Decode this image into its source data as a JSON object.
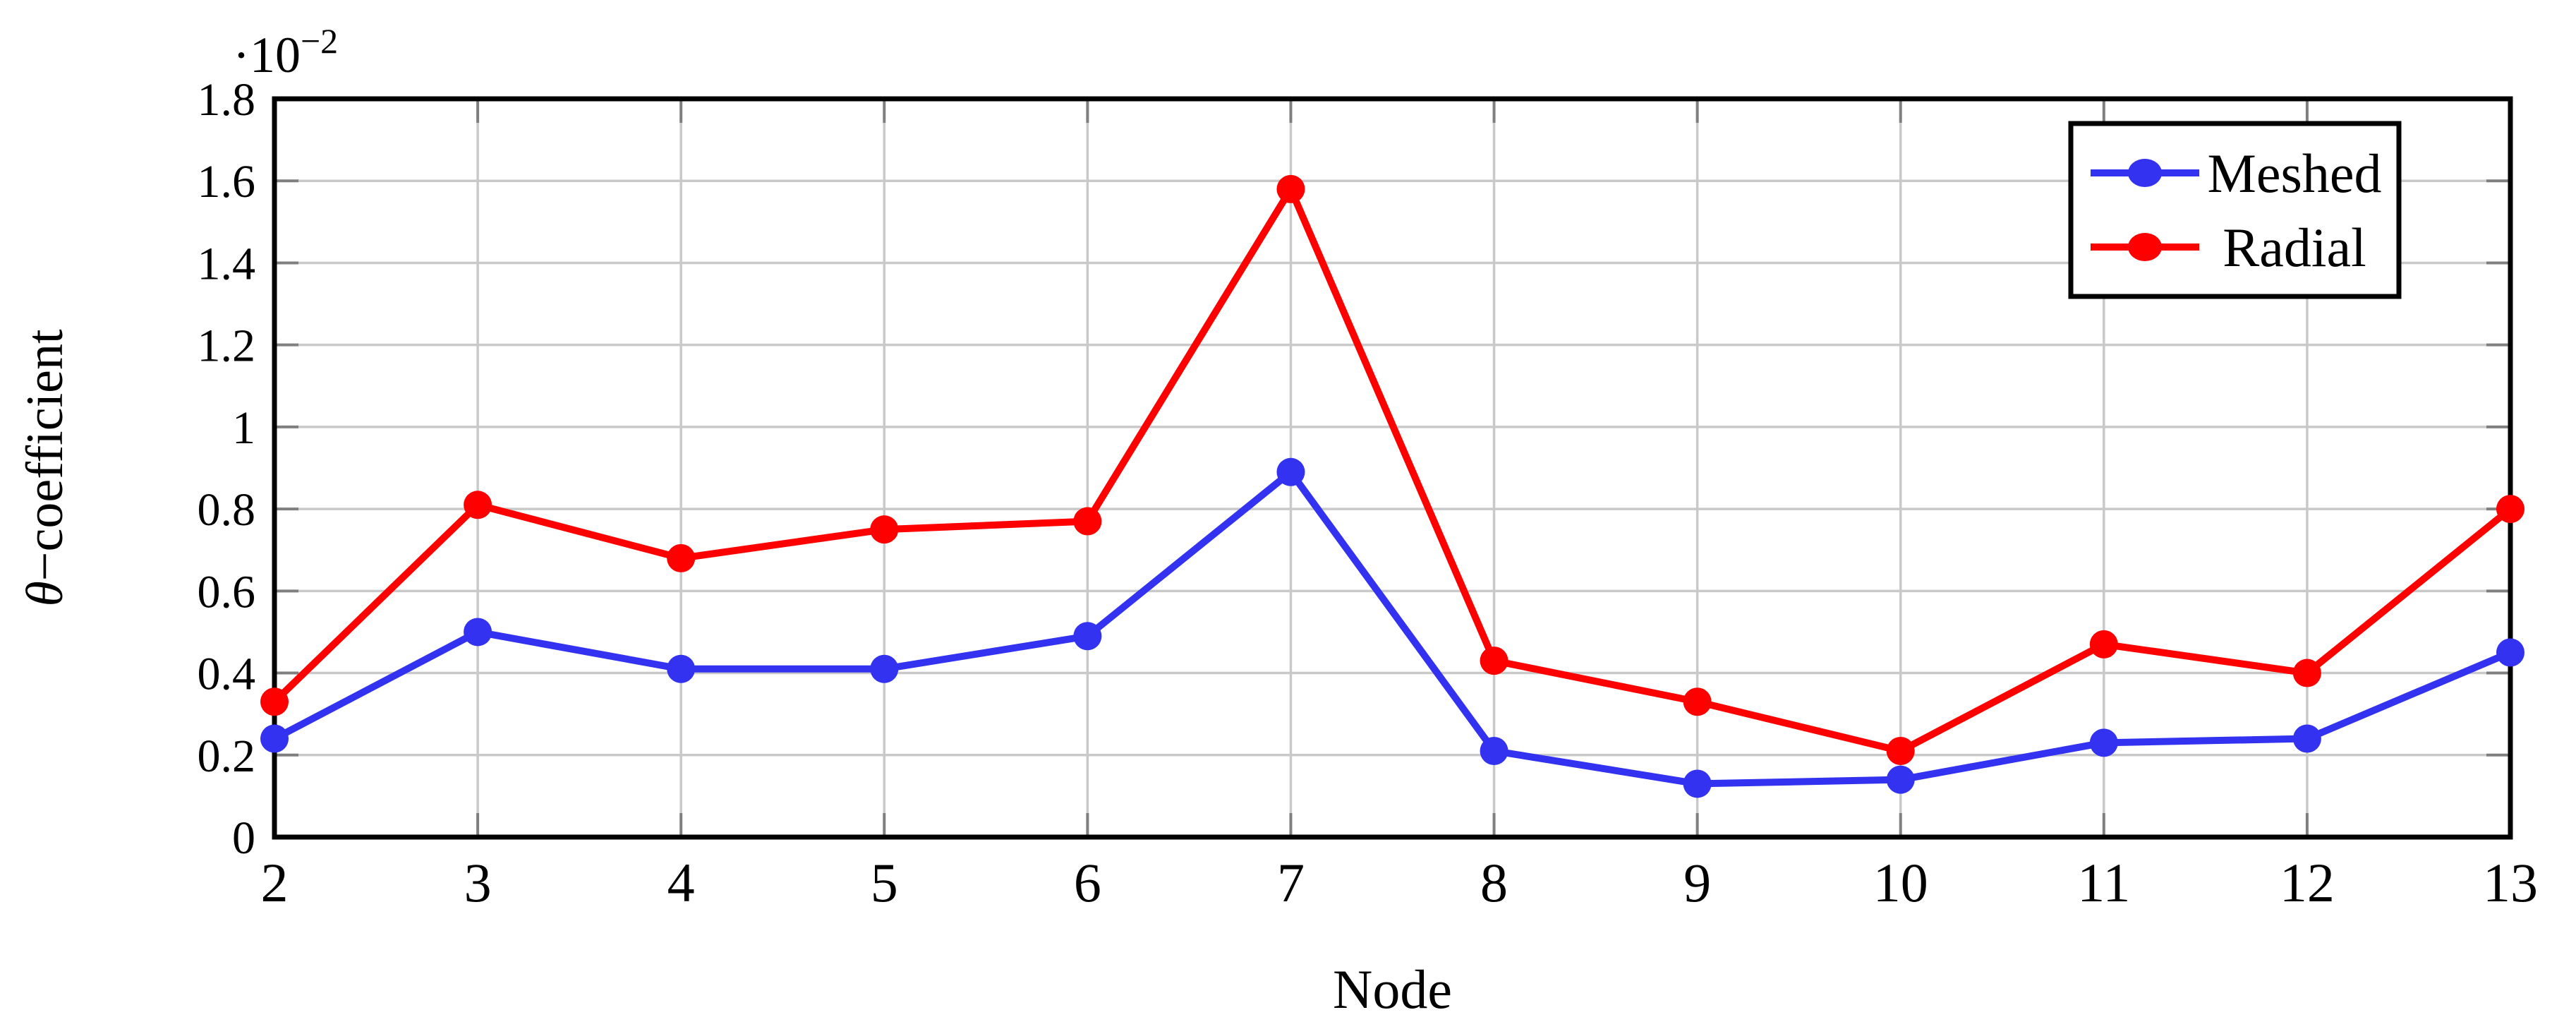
{
  "page": {
    "background": "#ffffff"
  },
  "chart_data": {
    "type": "line",
    "title": "",
    "xlabel": "Node",
    "ylabel": "θ−coefficient",
    "ylabel_parts": {
      "italic": "θ",
      "rest": "−coefficient"
    },
    "y_scale_label": "·10−2",
    "y_scale_label_parts": {
      "base": "·10",
      "exp": "−2"
    },
    "x": [
      2,
      3,
      4,
      5,
      6,
      7,
      8,
      9,
      10,
      11,
      12,
      13
    ],
    "x_tick_labels": [
      "2",
      "3",
      "4",
      "5",
      "6",
      "7",
      "8",
      "9",
      "10",
      "11",
      "12",
      "13"
    ],
    "xlim": [
      2,
      13
    ],
    "ylim": [
      0,
      1.8
    ],
    "y_ticks": [
      0,
      0.2,
      0.4,
      0.6,
      0.8,
      1,
      1.2,
      1.4,
      1.6,
      1.8
    ],
    "y_tick_labels": [
      "0",
      "0.2",
      "0.4",
      "0.6",
      "0.8",
      "1",
      "1.2",
      "1.4",
      "1.6",
      "1.8"
    ],
    "grid": true,
    "legend_position": "top-right",
    "series": [
      {
        "name": "Meshed",
        "color": "#3232f0",
        "values": [
          0.24,
          0.5,
          0.41,
          0.41,
          0.49,
          0.89,
          0.21,
          0.13,
          0.14,
          0.23,
          0.24,
          0.45
        ]
      },
      {
        "name": "Radial",
        "color": "#ff0000",
        "values": [
          0.33,
          0.81,
          0.68,
          0.75,
          0.77,
          1.58,
          0.43,
          0.33,
          0.21,
          0.47,
          0.4,
          0.8
        ]
      }
    ]
  },
  "legend": {
    "items": [
      {
        "label": "Meshed"
      },
      {
        "label": "Radial"
      }
    ]
  },
  "style_colors": {
    "axis": "#000000",
    "grid": "#c9c9c9",
    "tick": "#7f7f7f",
    "text": "#000000",
    "legend_background": "#ffffff",
    "legend_border": "#000000"
  }
}
